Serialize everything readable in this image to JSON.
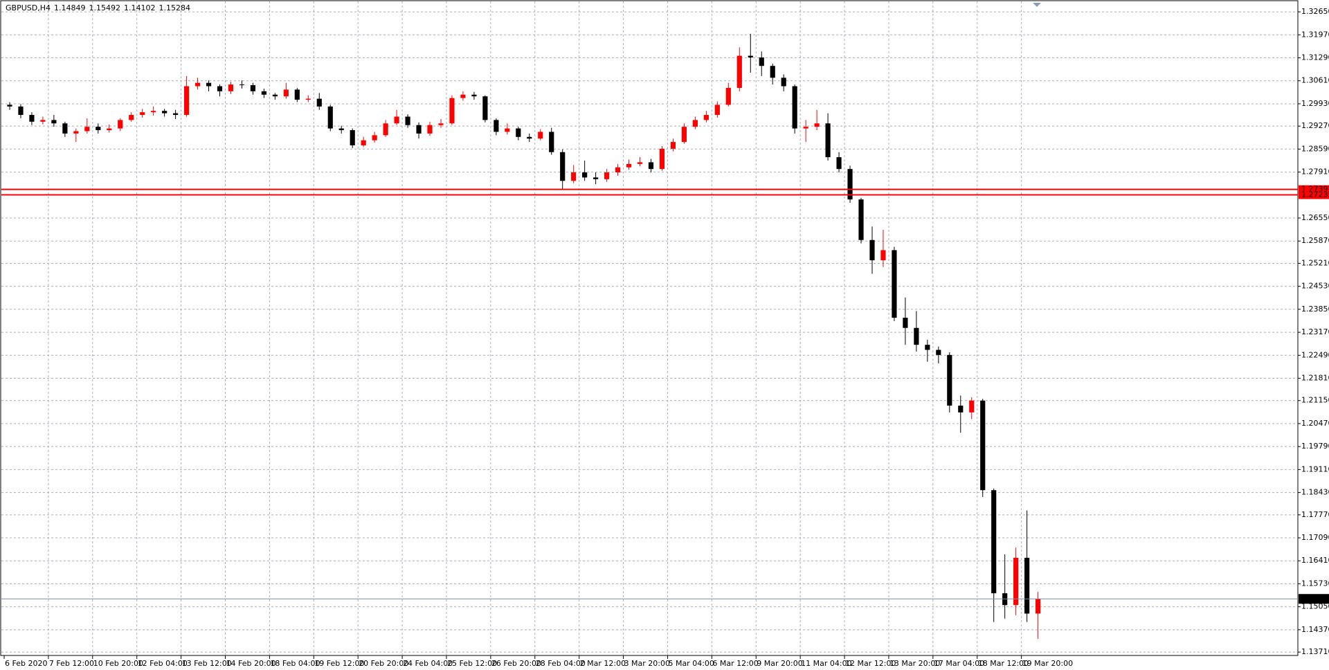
{
  "chart_data": {
    "type": "candlestick",
    "title": "GBPUSD,H4",
    "bull_color": "#ff0000",
    "bear_color": "#000000",
    "grid": true,
    "ylim": [
      1.1361,
      1.33
    ],
    "yticks": [
      {
        "value": 1.3265,
        "label": "1.32650"
      },
      {
        "value": 1.3197,
        "label": "1.31970"
      },
      {
        "value": 1.3129,
        "label": "1.31290"
      },
      {
        "value": 1.3061,
        "label": "1.30610"
      },
      {
        "value": 1.2993,
        "label": "1.29930"
      },
      {
        "value": 1.2927,
        "label": "1.29270"
      },
      {
        "value": 1.2859,
        "label": "1.28590"
      },
      {
        "value": 1.2791,
        "label": "1.27910"
      },
      {
        "value": 1.2655,
        "label": "1.26550"
      },
      {
        "value": 1.2587,
        "label": "1.25870"
      },
      {
        "value": 1.2521,
        "label": "1.25210"
      },
      {
        "value": 1.2453,
        "label": "1.24530"
      },
      {
        "value": 1.2385,
        "label": "1.23850"
      },
      {
        "value": 1.2317,
        "label": "1.23170"
      },
      {
        "value": 1.2249,
        "label": "1.22490"
      },
      {
        "value": 1.2181,
        "label": "1.21810"
      },
      {
        "value": 1.2115,
        "label": "1.21150"
      },
      {
        "value": 1.2047,
        "label": "1.20470"
      },
      {
        "value": 1.1979,
        "label": "1.19790"
      },
      {
        "value": 1.1911,
        "label": "1.19110"
      },
      {
        "value": 1.1843,
        "label": "1.18430"
      },
      {
        "value": 1.1777,
        "label": "1.17770"
      },
      {
        "value": 1.1709,
        "label": "1.17090"
      },
      {
        "value": 1.1641,
        "label": "1.16410"
      },
      {
        "value": 1.1573,
        "label": "1.15730"
      },
      {
        "value": 1.1505,
        "label": "1.15050"
      },
      {
        "value": 1.1437,
        "label": "1.14370"
      },
      {
        "value": 1.1371,
        "label": "1.13710"
      }
    ],
    "xlim": [
      0,
      117
    ],
    "xticks": [
      {
        "value": 0,
        "label": "6 Feb 2020"
      },
      {
        "value": 4,
        "label": "7 Feb 12:00"
      },
      {
        "value": 8,
        "label": "10 Feb 20:00"
      },
      {
        "value": 12,
        "label": "12 Feb 04:00"
      },
      {
        "value": 16,
        "label": "13 Feb 12:00"
      },
      {
        "value": 20,
        "label": "14 Feb 20:00"
      },
      {
        "value": 24,
        "label": "18 Feb 04:00"
      },
      {
        "value": 28,
        "label": "19 Feb 12:00"
      },
      {
        "value": 32,
        "label": "20 Feb 20:00"
      },
      {
        "value": 36,
        "label": "24 Feb 04:00"
      },
      {
        "value": 40,
        "label": "25 Feb 12:00"
      },
      {
        "value": 44,
        "label": "26 Feb 20:00"
      },
      {
        "value": 48,
        "label": "28 Feb 04:00"
      },
      {
        "value": 52,
        "label": "2 Mar 12:00"
      },
      {
        "value": 56,
        "label": "3 Mar 20:00"
      },
      {
        "value": 60,
        "label": "5 Mar 04:00"
      },
      {
        "value": 64,
        "label": "6 Mar 12:00"
      },
      {
        "value": 68,
        "label": "9 Mar 20:00"
      },
      {
        "value": 72,
        "label": "11 Mar 04:00"
      },
      {
        "value": 76,
        "label": "12 Mar 12:00"
      },
      {
        "value": 80,
        "label": "13 Mar 20:00"
      },
      {
        "value": 84,
        "label": "17 Mar 04:00"
      },
      {
        "value": 88,
        "label": "18 Mar 12:00"
      },
      {
        "value": 92,
        "label": "19 Mar 20:00"
      }
    ],
    "open": [
      1.299,
      1.2985,
      1.296,
      1.294,
      1.2945,
      1.2935,
      1.2905,
      1.2912,
      1.2925,
      1.2915,
      1.292,
      1.2945,
      1.296,
      1.2968,
      1.2972,
      1.2965,
      1.296,
      1.3045,
      1.3055,
      1.3045,
      1.303,
      1.305,
      1.3048,
      1.303,
      1.302,
      1.3015,
      1.3035,
      1.3005,
      1.3008,
      1.2985,
      1.292,
      1.2915,
      1.287,
      1.2885,
      1.29,
      1.2935,
      1.2955,
      1.293,
      1.2905,
      1.293,
      1.2935,
      1.301,
      1.302,
      1.3015,
      1.2945,
      1.291,
      1.292,
      1.2895,
      1.289,
      1.291,
      1.285,
      1.2765,
      1.279,
      1.2775,
      1.277,
      1.279,
      1.2805,
      1.2815,
      1.282,
      1.28,
      1.286,
      1.288,
      1.2925,
      1.2945,
      1.296,
      1.299,
      1.304,
      1.3135,
      1.313,
      1.3105,
      1.307,
      1.3045,
      1.292,
      1.2925,
      1.2935,
      1.2835,
      1.28,
      1.271,
      1.259,
      1.253,
      1.256,
      1.236,
      1.233,
      1.228,
      1.2265,
      1.225,
      1.21,
      1.208,
      1.2115,
      1.185,
      1.1545,
      1.151,
      1.165,
      1.14849
    ],
    "high": [
      1.2998,
      1.2992,
      1.2968,
      1.2955,
      1.296,
      1.294,
      1.292,
      1.295,
      1.2935,
      1.2932,
      1.295,
      1.2968,
      1.2978,
      1.2985,
      1.2978,
      1.2975,
      1.3075,
      1.307,
      1.3062,
      1.305,
      1.3058,
      1.3062,
      1.3055,
      1.3038,
      1.3025,
      1.3055,
      1.304,
      1.3018,
      1.3025,
      1.299,
      1.2928,
      1.292,
      1.2895,
      1.291,
      1.2945,
      1.2975,
      1.2962,
      1.2938,
      1.294,
      1.2948,
      1.3018,
      1.303,
      1.3028,
      1.3018,
      1.295,
      1.2935,
      1.2925,
      1.2905,
      1.2918,
      1.2922,
      1.2858,
      1.2812,
      1.2825,
      1.279,
      1.28,
      1.2815,
      1.2828,
      1.2835,
      1.283,
      1.2868,
      1.289,
      1.2935,
      1.2955,
      1.2972,
      1.3,
      1.3055,
      1.316,
      1.32,
      1.3148,
      1.3112,
      1.308,
      1.305,
      1.2945,
      1.2975,
      1.2965,
      1.285,
      1.281,
      1.2715,
      1.263,
      1.262,
      1.257,
      1.242,
      1.238,
      1.2295,
      1.2275,
      1.2258,
      1.213,
      1.2125,
      1.212,
      1.1855,
      1.166,
      1.168,
      1.179,
      1.15492
    ],
    "low": [
      1.2975,
      1.295,
      1.293,
      1.2932,
      1.2925,
      1.2895,
      1.288,
      1.2905,
      1.2905,
      1.2908,
      1.2912,
      1.294,
      1.2952,
      1.2958,
      1.2955,
      1.2948,
      1.2955,
      1.3035,
      1.303,
      1.3015,
      1.3022,
      1.3038,
      1.302,
      1.301,
      1.3005,
      1.3008,
      1.2998,
      1.2998,
      1.2975,
      1.2912,
      1.2905,
      1.2862,
      1.2865,
      1.2878,
      1.2895,
      1.293,
      1.2922,
      1.289,
      1.2898,
      1.2922,
      1.293,
      1.3002,
      1.3005,
      1.2938,
      1.29,
      1.2902,
      1.2885,
      1.288,
      1.2885,
      1.2842,
      1.274,
      1.2758,
      1.2765,
      1.2755,
      1.2762,
      1.278,
      1.2798,
      1.2808,
      1.279,
      1.2795,
      1.2852,
      1.2875,
      1.2918,
      1.2938,
      1.2952,
      1.2985,
      1.303,
      1.3085,
      1.3075,
      1.305,
      1.303,
      1.2905,
      1.288,
      1.2915,
      1.2825,
      1.279,
      1.27,
      1.258,
      1.249,
      1.251,
      1.235,
      1.228,
      1.226,
      1.223,
      1.2225,
      1.208,
      1.202,
      1.206,
      1.183,
      1.146,
      1.147,
      1.148,
      1.146,
      1.14102
    ],
    "close": [
      1.2985,
      1.296,
      1.294,
      1.2945,
      1.2935,
      1.2905,
      1.2912,
      1.2925,
      1.2915,
      1.292,
      1.2945,
      1.296,
      1.2968,
      1.2972,
      1.2965,
      1.296,
      1.3045,
      1.3055,
      1.3045,
      1.303,
      1.305,
      1.3048,
      1.303,
      1.302,
      1.3015,
      1.3035,
      1.3005,
      1.3008,
      1.2985,
      1.292,
      1.2915,
      1.287,
      1.2885,
      1.29,
      1.2935,
      1.2955,
      1.293,
      1.2905,
      1.293,
      1.2935,
      1.301,
      1.302,
      1.3015,
      1.2945,
      1.291,
      1.292,
      1.2895,
      1.289,
      1.291,
      1.285,
      1.2765,
      1.279,
      1.2775,
      1.277,
      1.279,
      1.2805,
      1.2815,
      1.282,
      1.28,
      1.286,
      1.288,
      1.2925,
      1.2945,
      1.296,
      1.299,
      1.304,
      1.3135,
      1.313,
      1.3105,
      1.307,
      1.3045,
      1.292,
      1.2925,
      1.2935,
      1.2835,
      1.28,
      1.271,
      1.259,
      1.253,
      1.256,
      1.236,
      1.233,
      1.228,
      1.2265,
      1.225,
      1.21,
      1.208,
      1.2115,
      1.185,
      1.1545,
      1.151,
      1.165,
      1.14849,
      1.15284
    ],
    "levels": [
      {
        "value": 1.27397,
        "color": "#ff0000"
      },
      {
        "value": 1.27235,
        "color": "#ff0000"
      }
    ],
    "price_line_color": "#7f8a99"
  }
}
